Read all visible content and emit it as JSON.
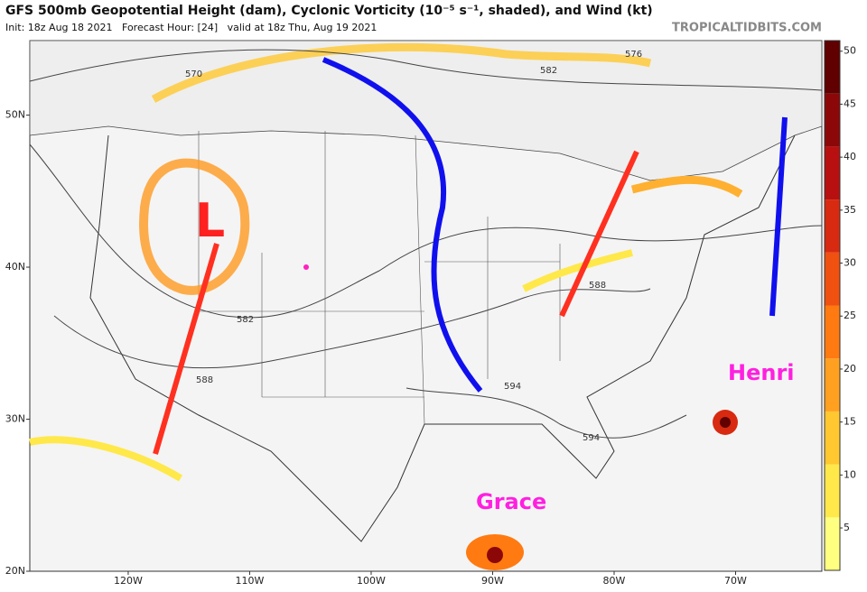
{
  "map": {
    "title": "GFS 500mb Geopotential Height (dam), Cyclonic Vorticity (10⁻⁵ s⁻¹, shaded), and Wind (kt)",
    "subtitle": "Init: 18z Aug 18 2021   Forecast Hour: [24]   valid at 18z Thu, Aug 19 2021",
    "brand": "TROPICALTIDBITS.COM",
    "latlim": [
      20,
      54.9
    ],
    "lonlim": [
      -128.1,
      -62.9
    ],
    "lat_ticks": [
      {
        "value": 50,
        "label": "50N"
      },
      {
        "value": 40,
        "label": "40N"
      },
      {
        "value": 30,
        "label": "30N"
      },
      {
        "value": 20,
        "label": "20N"
      }
    ],
    "lon_ticks": [
      {
        "value": -120,
        "label": "120W"
      },
      {
        "value": -110,
        "label": "110W"
      },
      {
        "value": -100,
        "label": "100W"
      },
      {
        "value": -90,
        "label": "90W"
      },
      {
        "value": -80,
        "label": "80W"
      },
      {
        "value": -70,
        "label": "70W"
      }
    ],
    "contour_labels": [
      "570",
      "582",
      "576",
      "582",
      "588",
      "588",
      "594",
      "594"
    ],
    "annotations": [
      "L",
      "Henri",
      "Grace"
    ],
    "colorbar": {
      "range": [
        1,
        51
      ],
      "ticks": [
        5,
        10,
        15,
        20,
        25,
        30,
        35,
        40,
        45,
        50
      ],
      "colors": [
        "#ffff80",
        "#ffe84a",
        "#ffc830",
        "#ffa020",
        "#ff7a10",
        "#f05010",
        "#d82a10",
        "#b81010",
        "#8c0808",
        "#600000"
      ]
    }
  }
}
